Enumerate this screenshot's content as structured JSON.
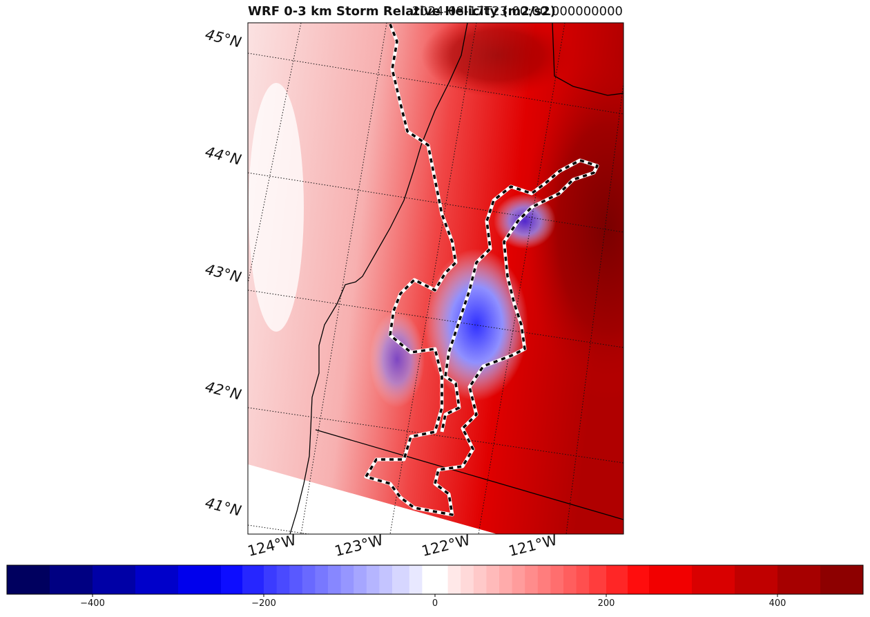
{
  "chart_data": {
    "type": "heatmap",
    "title": "WRF 0-3 km Storm Relative Helicity (m2/s2)",
    "valid_time": "2024-08-17T23:00:00.000000000",
    "latitude_labels": [
      "45°N",
      "44°N",
      "43°N",
      "42°N",
      "41°N"
    ],
    "longitude_labels": [
      "124°W",
      "123°W",
      "122°W",
      "121°W"
    ],
    "colorbar": {
      "cmap": "seismic",
      "range": [
        -500,
        500
      ],
      "ticks": [
        -400,
        -200,
        0,
        200,
        400
      ],
      "tick_labels": [
        "−400",
        "−200",
        "0",
        "200",
        "400"
      ]
    },
    "colors": {
      "strong_positive": "#8b0000",
      "positive": "#f20000",
      "neutral": "#ffffff",
      "negative": "#4a4aff",
      "strong_negative": "#00004d",
      "fire_perimeter": "#000000"
    }
  }
}
